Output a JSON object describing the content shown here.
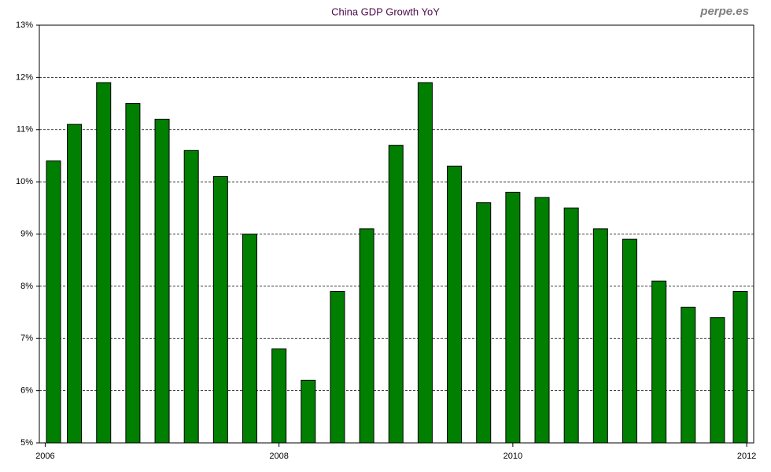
{
  "chart_data": {
    "type": "bar",
    "title": "China GDP Growth YoY",
    "watermark": "perpe.es",
    "x": [
      2006,
      2006.25,
      2006.5,
      2006.75,
      2007,
      2007.25,
      2007.5,
      2007.75,
      2008,
      2008.25,
      2008.5,
      2008.75,
      2009,
      2009.25,
      2009.5,
      2009.75,
      2010,
      2010.25,
      2010.5,
      2010.75,
      2011,
      2011.25,
      2011.5,
      2011.75,
      2012
    ],
    "values": [
      10.4,
      11.1,
      11.9,
      11.5,
      11.2,
      10.6,
      10.1,
      9.0,
      6.8,
      6.2,
      7.9,
      9.1,
      10.7,
      11.9,
      10.3,
      9.6,
      9.8,
      9.7,
      9.5,
      9.1,
      8.9,
      8.1,
      7.6,
      7.4,
      7.9
    ],
    "color": "#007f00",
    "xlim": [
      2005.95,
      2012.06
    ],
    "xticks": [
      2006,
      2008,
      2010,
      2012
    ],
    "ylim": [
      5,
      13
    ],
    "yticks": [
      {
        "value": 5,
        "label": "5%"
      },
      {
        "value": 6,
        "label": "6%"
      },
      {
        "value": 7,
        "label": "7%"
      },
      {
        "value": 8,
        "label": "8%"
      },
      {
        "value": 9,
        "label": "9%"
      },
      {
        "value": 10,
        "label": "10%"
      },
      {
        "value": 11,
        "label": "11%"
      },
      {
        "value": 12,
        "label": "12%"
      },
      {
        "value": 13,
        "label": "13%"
      }
    ],
    "grid": true
  }
}
